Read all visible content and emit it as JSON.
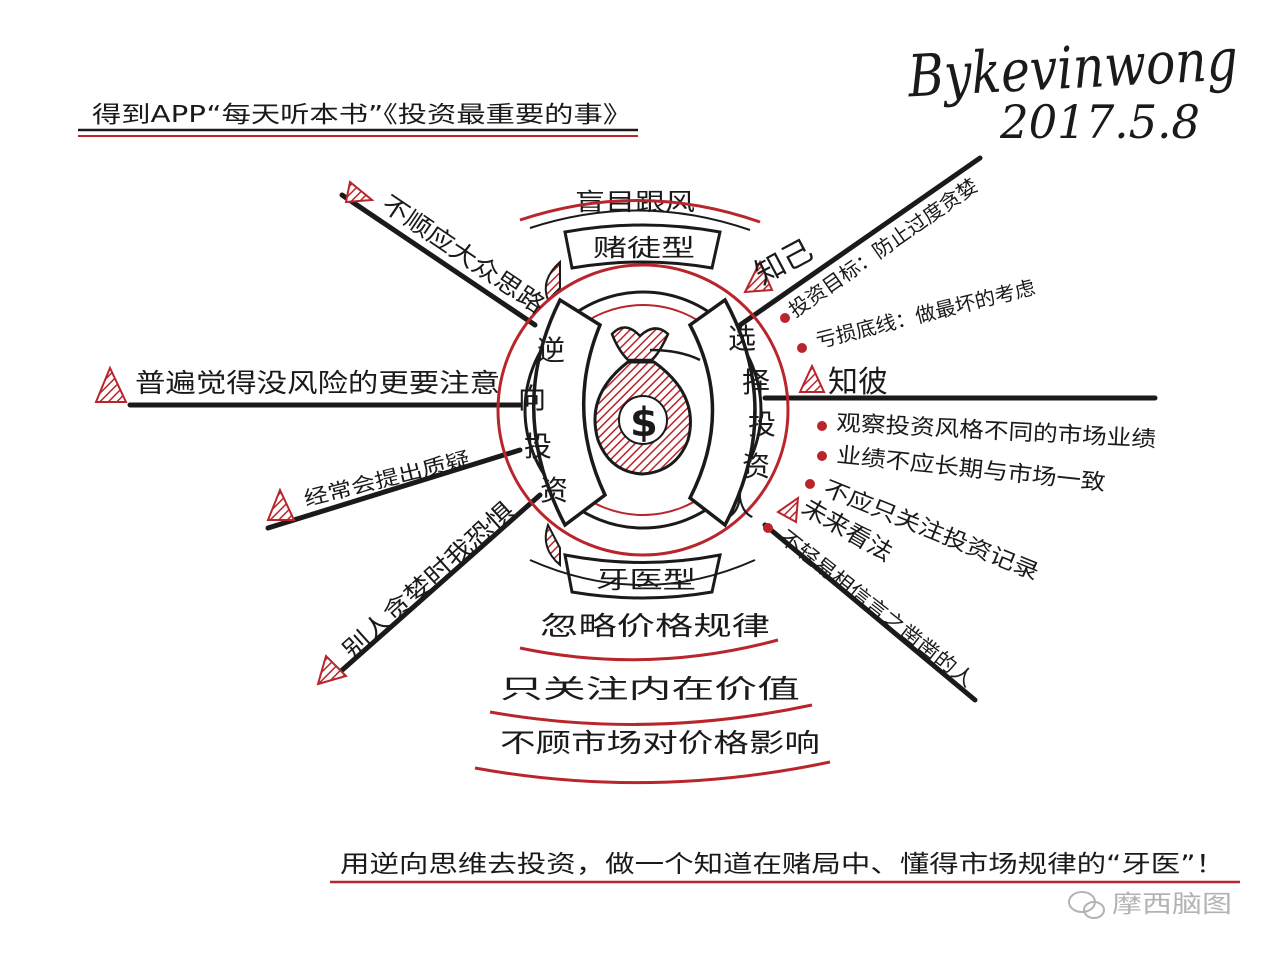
{
  "author": "Bykevinwong",
  "date": "2017.5.8",
  "header_title": "得到APP“每天听本书”《投资最重要的事》",
  "center": {
    "left_label": [
      "逆",
      "向",
      "投",
      "资"
    ],
    "right_label": [
      "选",
      "择",
      "投",
      "资",
      "人"
    ],
    "bag_symbol": "$"
  },
  "top": {
    "sub_label": "盲目跟风",
    "type_label": "赌徒型"
  },
  "bottom": {
    "type_label": "牙医型",
    "items": [
      "忽略价格规律",
      "只关注内在价值",
      "不顾市场对价格影响"
    ]
  },
  "left_branches": [
    "不顺应大众思路",
    "普遍觉得没风险的更要注意",
    "经常会提出质疑",
    "别人贪婪时我恐惧"
  ],
  "right_sections": {
    "know_self": {
      "label": "知己",
      "items": [
        "投资目标：防止过度贪婪",
        "亏损底线：做最坏的考虑"
      ]
    },
    "know_other": {
      "label": "知彼",
      "items": [
        "观察投资风格不同的市场业绩",
        "业绩不应长期与市场一致",
        "不应只关注投资记录"
      ]
    },
    "future": {
      "label": "未来看法",
      "items": [
        "不轻易相信言之凿凿的人"
      ]
    }
  },
  "footer_text": "用逆向思维去投资，做一个知道在赌局中、懂得市场规律的“牙医”！",
  "watermark": "摩西脑图",
  "colors": {
    "accent": "#b8262c",
    "ink": "#1a1a1a",
    "paper": "#ffffff"
  }
}
